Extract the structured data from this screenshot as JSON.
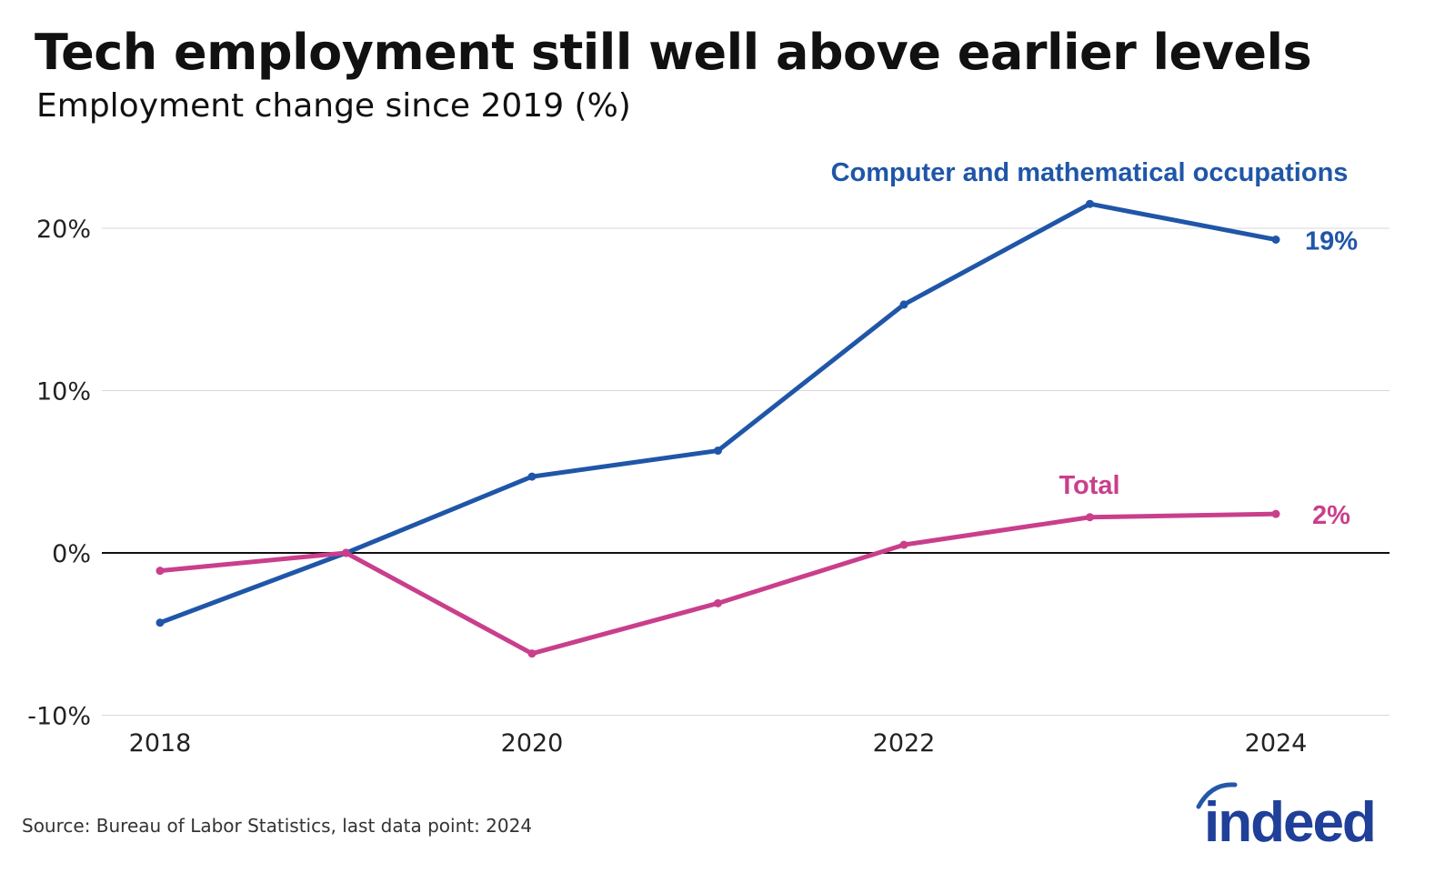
{
  "title": "Tech employment still well above earlier levels",
  "subtitle": "Employment change since 2019 (%)",
  "source": "Source: Bureau of Labor Statistics, last data point: 2024",
  "logo_text": "indeed",
  "chart_data": {
    "type": "line",
    "title": "Tech employment still well above earlier levels",
    "subtitle": "Employment change since 2019 (%)",
    "x": [
      2018,
      2019,
      2020,
      2021,
      2022,
      2023,
      2024
    ],
    "x_ticks": [
      "2018",
      "2020",
      "2022",
      "2024"
    ],
    "y_ticks": [
      {
        "v": 20,
        "label": "20%"
      },
      {
        "v": 10,
        "label": "10%"
      },
      {
        "v": 0,
        "label": "0%"
      },
      {
        "v": -10,
        "label": "-10%"
      }
    ],
    "ylim": [
      -10,
      22
    ],
    "grid": true,
    "series": [
      {
        "name": "Computer and mathematical occupations",
        "color": "#1f56a8",
        "end_label": "19%",
        "values": [
          -4.3,
          0,
          4.7,
          6.3,
          15.3,
          21.5,
          19.3
        ]
      },
      {
        "name": "Total",
        "color": "#c93f8c",
        "end_label": "2%",
        "values": [
          -1.1,
          0,
          -6.2,
          -3.1,
          0.5,
          2.2,
          2.4
        ]
      }
    ]
  }
}
